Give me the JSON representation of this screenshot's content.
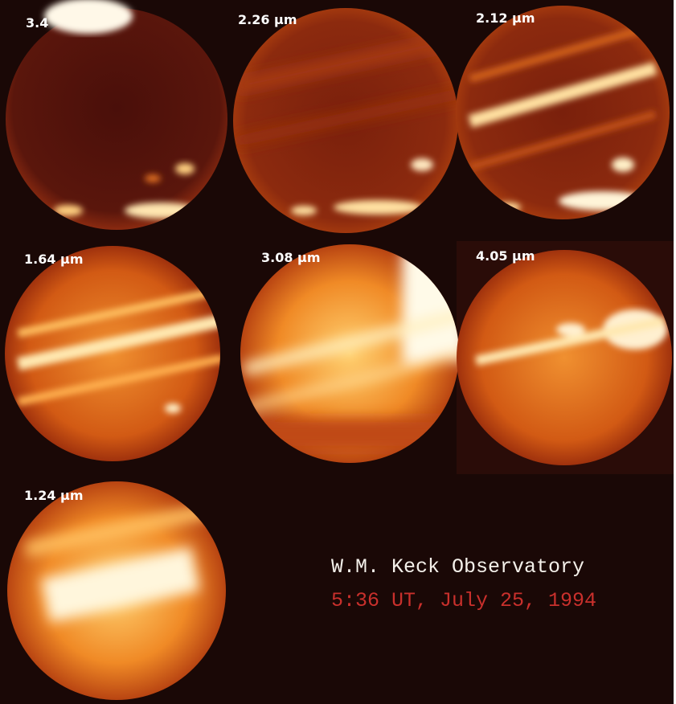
{
  "panels": [
    {
      "label": "3.4"
    },
    {
      "label": "2.26 µm"
    },
    {
      "label": "2.12 µm"
    },
    {
      "label": "1.64 µm"
    },
    {
      "label": "3.08 µm"
    },
    {
      "label": "4.05 µm"
    },
    {
      "label": "1.24 µm"
    }
  ],
  "caption": {
    "observatory": "W.M. Keck Observatory",
    "time": "5:36 UT, July 25, 1994"
  }
}
